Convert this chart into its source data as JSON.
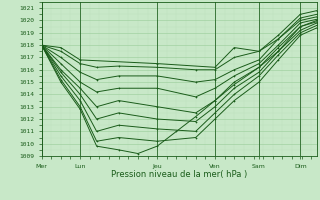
{
  "title": "",
  "xlabel": "Pression niveau de la mer( hPa )",
  "ylim": [
    1009,
    1021.5
  ],
  "yticks": [
    1009,
    1010,
    1011,
    1012,
    1013,
    1014,
    1015,
    1016,
    1017,
    1018,
    1019,
    1020,
    1021
  ],
  "xtick_labels": [
    "Mer",
    "Lun",
    "Jeu",
    "Ven",
    "Sam",
    "Dim"
  ],
  "xtick_positions": [
    0,
    0.14,
    0.42,
    0.63,
    0.79,
    0.94
  ],
  "xlim": [
    0,
    1.0
  ],
  "background_color": "#c8e8c8",
  "grid_major_color": "#99cc99",
  "grid_minor_color": "#b8ddb8",
  "line_color": "#1a5c1a",
  "marker": "+",
  "lines": [
    {
      "x": [
        0.0,
        0.07,
        0.14,
        0.2,
        0.28,
        0.42,
        0.56,
        0.63,
        0.7,
        0.79,
        0.86,
        0.94,
        1.0
      ],
      "y": [
        1018.0,
        1017.5,
        1016.5,
        1016.2,
        1016.3,
        1016.2,
        1016.0,
        1016.0,
        1017.0,
        1017.5,
        1018.5,
        1020.2,
        1020.5
      ]
    },
    {
      "x": [
        0.0,
        0.07,
        0.14,
        0.2,
        0.28,
        0.42,
        0.56,
        0.63,
        0.7,
        0.79,
        0.86,
        0.94,
        1.0
      ],
      "y": [
        1018.0,
        1017.0,
        1015.8,
        1015.2,
        1015.5,
        1015.5,
        1015.0,
        1015.2,
        1016.0,
        1016.8,
        1018.5,
        1020.0,
        1020.3
      ]
    },
    {
      "x": [
        0.0,
        0.07,
        0.14,
        0.2,
        0.28,
        0.42,
        0.56,
        0.63,
        0.7,
        0.79,
        0.86,
        0.94,
        1.0
      ],
      "y": [
        1018.0,
        1016.5,
        1015.0,
        1014.2,
        1014.5,
        1014.5,
        1013.8,
        1014.5,
        1015.5,
        1016.5,
        1018.0,
        1019.8,
        1020.1
      ]
    },
    {
      "x": [
        0.0,
        0.07,
        0.14,
        0.2,
        0.28,
        0.42,
        0.56,
        0.63,
        0.7,
        0.79,
        0.86,
        0.94,
        1.0
      ],
      "y": [
        1018.0,
        1016.0,
        1014.5,
        1013.0,
        1013.5,
        1013.0,
        1012.5,
        1013.5,
        1015.0,
        1016.2,
        1017.8,
        1019.5,
        1019.9
      ]
    },
    {
      "x": [
        0.0,
        0.07,
        0.14,
        0.2,
        0.28,
        0.42,
        0.56,
        0.63,
        0.7,
        0.79,
        0.86,
        0.94,
        1.0
      ],
      "y": [
        1018.0,
        1015.8,
        1014.0,
        1012.0,
        1012.5,
        1012.0,
        1011.8,
        1013.0,
        1014.5,
        1015.8,
        1017.5,
        1019.2,
        1019.8
      ]
    },
    {
      "x": [
        0.0,
        0.07,
        0.14,
        0.2,
        0.28,
        0.42,
        0.56,
        0.63,
        0.7,
        0.79,
        0.86,
        0.94,
        1.0
      ],
      "y": [
        1018.0,
        1015.5,
        1013.5,
        1011.0,
        1011.5,
        1011.2,
        1011.0,
        1012.5,
        1014.0,
        1015.5,
        1017.2,
        1019.0,
        1019.6
      ]
    },
    {
      "x": [
        0.0,
        0.07,
        0.14,
        0.2,
        0.28,
        0.42,
        0.56,
        0.63,
        0.7,
        0.79,
        0.86,
        0.94,
        1.0
      ],
      "y": [
        1018.0,
        1015.2,
        1013.0,
        1010.2,
        1010.5,
        1010.2,
        1010.5,
        1012.0,
        1013.5,
        1015.0,
        1016.8,
        1018.8,
        1019.4
      ]
    },
    {
      "x": [
        0.0,
        0.07,
        0.14,
        0.2,
        0.28,
        0.35,
        0.42,
        0.49,
        0.56,
        0.63,
        0.7,
        0.79,
        0.86,
        0.94,
        1.0
      ],
      "y": [
        1018.0,
        1015.0,
        1012.8,
        1009.8,
        1009.5,
        1009.2,
        1009.8,
        1011.0,
        1012.2,
        1013.5,
        1014.8,
        1016.2,
        1017.5,
        1019.5,
        1020.0
      ]
    },
    {
      "x": [
        0.0,
        0.07,
        0.14,
        0.42,
        0.63,
        0.7,
        0.79,
        0.86,
        0.94,
        1.0
      ],
      "y": [
        1018.0,
        1017.8,
        1016.8,
        1016.5,
        1016.2,
        1017.8,
        1017.5,
        1018.8,
        1020.5,
        1020.8
      ]
    }
  ],
  "marker_size": 1.5,
  "linewidth": 0.7,
  "tick_fontsize": 4.5,
  "xlabel_fontsize": 6.0,
  "tick_color": "#1a5c1a"
}
